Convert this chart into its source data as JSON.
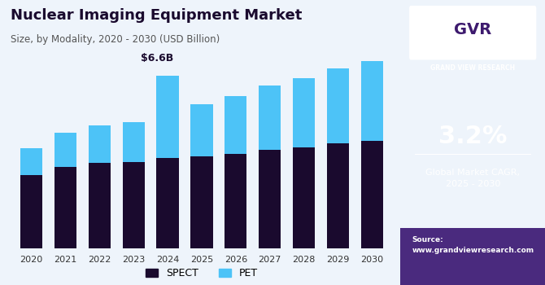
{
  "years": [
    2020,
    2021,
    2022,
    2023,
    2024,
    2025,
    2026,
    2027,
    2028,
    2029,
    2030
  ],
  "spect": [
    2.8,
    3.1,
    3.25,
    3.3,
    3.45,
    3.5,
    3.6,
    3.75,
    3.85,
    4.0,
    4.1
  ],
  "pet": [
    1.0,
    1.3,
    1.45,
    1.5,
    3.15,
    2.0,
    2.2,
    2.45,
    2.65,
    2.85,
    3.05
  ],
  "annotation_year": 2024,
  "annotation_text": "$6.6B",
  "title": "Nuclear Imaging Equipment Market",
  "subtitle": "Size, by Modality, 2020 - 2030 (USD Billion)",
  "spect_color": "#1a0a2e",
  "pet_color": "#4dc3f7",
  "bg_color": "#eef4fb",
  "chart_bg": "#eef4fb",
  "right_panel_color": "#3d1a6e",
  "cagr_value": "3.2%",
  "cagr_label": "Global Market CAGR,\n2025 - 2030",
  "source_text": "Source:\nwww.grandviewresearch.com",
  "legend_spect": "SPECT",
  "legend_pet": "PET",
  "ylim": [
    0,
    8.5
  ],
  "figsize": [
    6.7,
    3.5
  ],
  "dpi": 100
}
